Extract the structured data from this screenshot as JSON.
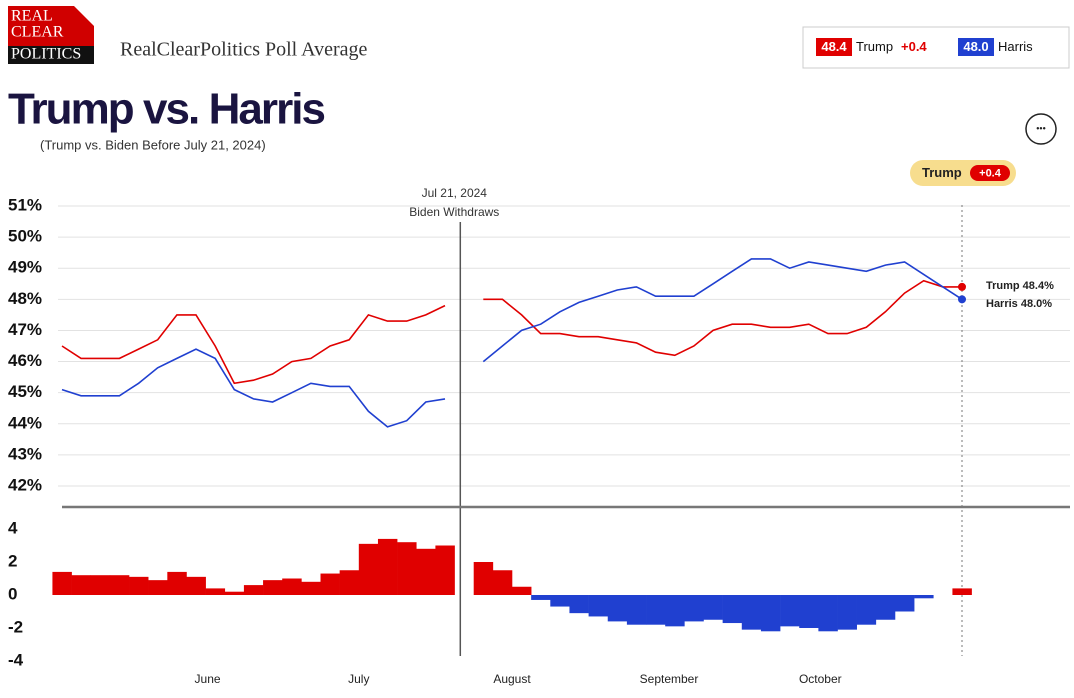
{
  "header": {
    "logo": [
      "REAL",
      "CLEAR",
      "POLITICS"
    ],
    "site_title": "RealClearPolitics Poll Average",
    "summary": [
      {
        "name": "Trump",
        "value": "48.4",
        "change": "+0.4",
        "color": "#e00000"
      },
      {
        "name": "Harris",
        "value": "48.0",
        "color": "#2040d0"
      }
    ],
    "title": "Trump vs. Harris",
    "subtitle": "(Trump vs. Biden Before July 21, 2024)",
    "menu": "•••"
  },
  "chart_data": [
    {
      "type": "line",
      "xlim": [
        0,
        47
      ],
      "ylim": [
        42,
        51
      ],
      "yticks": [
        {
          "value": 51,
          "label": "51%"
        },
        {
          "value": 50,
          "label": "50%"
        },
        {
          "value": 49,
          "label": "49%"
        },
        {
          "value": 48,
          "label": "48%"
        },
        {
          "value": 47,
          "label": "47%"
        },
        {
          "value": 46,
          "label": "46%"
        },
        {
          "value": 45,
          "label": "45%"
        },
        {
          "value": 44,
          "label": "44%"
        },
        {
          "value": 43,
          "label": "43%"
        },
        {
          "value": 42,
          "label": "42%"
        }
      ],
      "grid": true,
      "series": [
        {
          "name": "Trump",
          "color": "#e00000",
          "values": [
            46.5,
            46.1,
            46.1,
            46.1,
            46.4,
            46.7,
            47.5,
            47.5,
            46.5,
            45.3,
            45.4,
            45.6,
            46.0,
            46.1,
            46.5,
            46.7,
            47.5,
            47.3,
            47.3,
            47.5,
            47.8,
            null,
            48.0,
            48.0,
            47.5,
            46.9,
            46.9,
            46.8,
            46.8,
            46.7,
            46.6,
            46.3,
            46.2,
            46.5,
            47.0,
            47.2,
            47.2,
            47.1,
            47.1,
            47.2,
            46.9,
            46.9,
            47.1,
            47.6,
            48.2,
            48.6,
            48.4,
            48.4
          ]
        },
        {
          "name": "Harris",
          "color": "#2040d0",
          "values": [
            45.1,
            44.9,
            44.9,
            44.9,
            45.3,
            45.8,
            46.1,
            46.4,
            46.1,
            45.1,
            44.8,
            44.7,
            45.0,
            45.3,
            45.2,
            45.2,
            44.4,
            43.9,
            44.1,
            44.7,
            44.8,
            null,
            46.0,
            46.5,
            47.0,
            47.2,
            47.6,
            47.9,
            48.1,
            48.3,
            48.4,
            48.1,
            48.1,
            48.1,
            48.5,
            48.9,
            49.3,
            49.3,
            49.0,
            49.2,
            49.1,
            49.0,
            48.9,
            49.1,
            49.2,
            48.8,
            48.4,
            48.0
          ]
        }
      ],
      "end_labels": [
        "Trump 48.4%",
        "Harris 48.0%"
      ],
      "event": {
        "x": 20.8,
        "label": [
          "Jul 21, 2024",
          "Biden Withdraws"
        ]
      },
      "leader": {
        "name": "Trump",
        "lead": "+0.4"
      }
    },
    {
      "type": "bar",
      "xlim": [
        0,
        47
      ],
      "ylim": [
        -4,
        4
      ],
      "yticks": [
        4,
        2,
        0,
        -2,
        -4
      ],
      "positive_color": "#e00000",
      "negative_color": "#2040d0",
      "values": [
        1.4,
        1.2,
        1.2,
        1.2,
        1.1,
        0.9,
        1.4,
        1.1,
        0.4,
        0.2,
        0.6,
        0.9,
        1.0,
        0.8,
        1.3,
        1.5,
        3.1,
        3.4,
        3.2,
        2.8,
        3.0,
        null,
        2.0,
        1.5,
        0.5,
        -0.3,
        -0.7,
        -1.1,
        -1.3,
        -1.6,
        -1.8,
        -1.8,
        -1.9,
        -1.6,
        -1.5,
        -1.7,
        -2.1,
        -2.2,
        -1.9,
        -2.0,
        -2.2,
        -2.1,
        -1.8,
        -1.5,
        -1.0,
        -0.2,
        0.0,
        0.4
      ],
      "xticks": [
        {
          "value": 7.6,
          "label": "June"
        },
        {
          "value": 15.5,
          "label": "July"
        },
        {
          "value": 23.5,
          "label": "August"
        },
        {
          "value": 31.7,
          "label": "September"
        },
        {
          "value": 39.6,
          "label": "October"
        }
      ]
    }
  ]
}
